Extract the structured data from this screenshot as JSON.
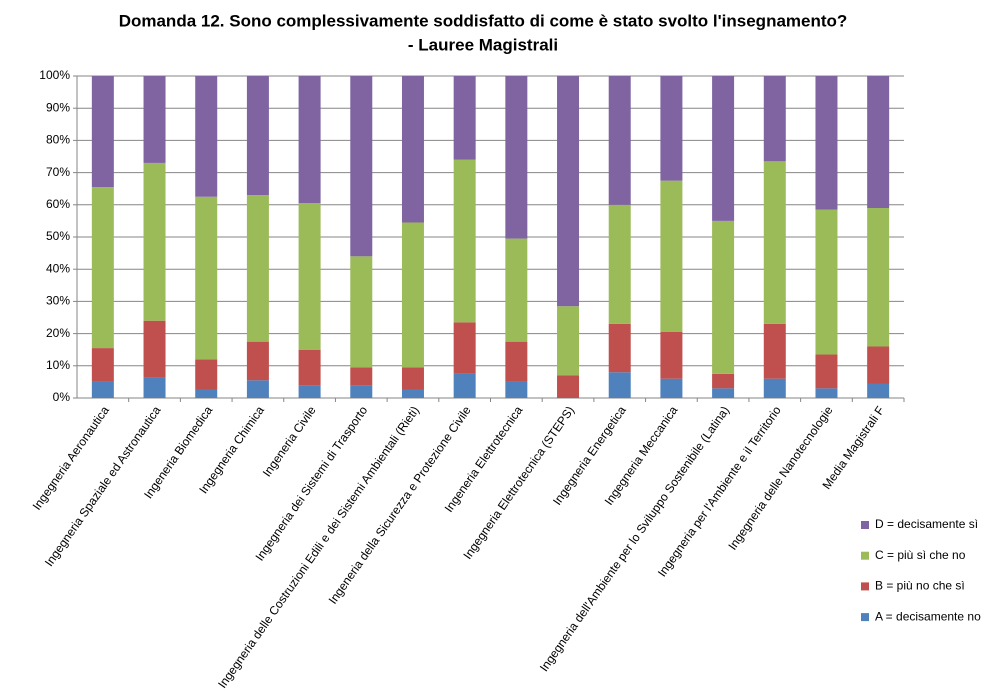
{
  "chart_data": {
    "type": "stacked_bar",
    "title": [
      "Domanda 12. Sono complessivamente soddisfatto di come è stato svolto l'insegnamento?",
      "- Lauree Magistrali"
    ],
    "categories": [
      "Ingegneria Aeronautica",
      "Ingegneria Spaziale ed Astronautica",
      "Ingeneria Biomedica",
      "Ingegneria Chimica",
      "Ingeneria Civile",
      "Ingegneria dei Sistemi di Trasporto",
      "Ingegneria delle Costruzioni Edili e dei Sistemi Ambientali (Rieti)",
      "Ingeneria della Sicurezza e Protezione Civile",
      "Ingeneria Elettrotecnica",
      "Ingegneria Elettrotecnica (STEPS)",
      "Ingegneria Energetica",
      "Ingegneria Meccanica",
      "Ingegneria dell'Ambiente per lo Sviluppo Sostenibile (Latina)",
      "Ingegneria per l'Ambiente e il Territorio",
      "Ingegneria delle Nanotecnologie",
      "Media Magistrali F"
    ],
    "series": [
      {
        "name": "A = decisamente no",
        "color": "#4f81bd",
        "values": [
          5,
          6.5,
          2.5,
          5.5,
          4,
          4,
          2.5,
          7.5,
          5,
          0,
          8,
          6,
          3,
          6,
          3,
          4.5
        ]
      },
      {
        "name": "B = più no che sì",
        "color": "#c0504d",
        "values": [
          10.5,
          17.5,
          9.5,
          12,
          11,
          5.5,
          7,
          16,
          12.5,
          7,
          15,
          14.5,
          4.5,
          17,
          10.5,
          11.5
        ]
      },
      {
        "name": "C = più sì che no",
        "color": "#9bbb59",
        "values": [
          50,
          49,
          50.5,
          45.5,
          45.5,
          34.5,
          45,
          50.5,
          32,
          21.5,
          37,
          47,
          47.5,
          50.5,
          45,
          43
        ]
      },
      {
        "name": "D = decisamente sì",
        "color": "#8064a2",
        "values": [
          34.5,
          27,
          37.5,
          37,
          39.5,
          56,
          45.5,
          26,
          50.5,
          71.5,
          40,
          32.5,
          45,
          26.5,
          41.5,
          41
        ]
      }
    ],
    "ylim": [
      0,
      100
    ],
    "yticks": [
      {
        "value": 0,
        "label": "0%"
      },
      {
        "value": 10,
        "label": "10%"
      },
      {
        "value": 20,
        "label": "20%"
      },
      {
        "value": 30,
        "label": "30%"
      },
      {
        "value": 40,
        "label": "40%"
      },
      {
        "value": 50,
        "label": "50%"
      },
      {
        "value": 60,
        "label": "60%"
      },
      {
        "value": 70,
        "label": "70%"
      },
      {
        "value": 80,
        "label": "80%"
      },
      {
        "value": 90,
        "label": "90%"
      },
      {
        "value": 100,
        "label": "100%"
      }
    ],
    "grid": true
  }
}
